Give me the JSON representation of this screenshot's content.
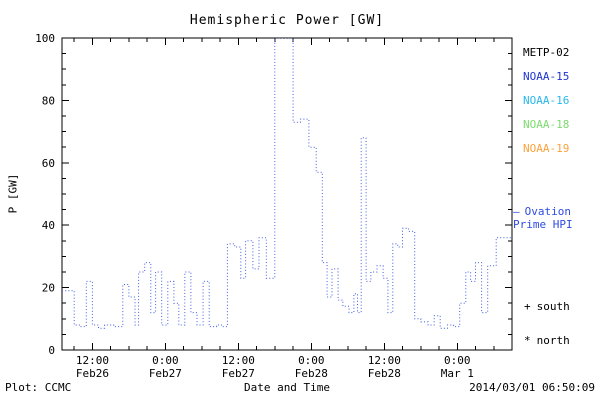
{
  "title": "Hemispheric Power [GW]",
  "footer": {
    "left": "Plot: CCMC",
    "right": "2014/03/01 06:50:09"
  },
  "legend": {
    "satellites": [
      {
        "label": "METP-02",
        "color": "#000000"
      },
      {
        "label": "NOAA-15",
        "color": "#1f35cf"
      },
      {
        "label": "NOAA-16",
        "color": "#29b9e8"
      },
      {
        "label": "NOAA-18",
        "color": "#7bdc6e"
      },
      {
        "label": "NOAA-19",
        "color": "#f9a23c"
      }
    ],
    "series_label": {
      "dash": "—",
      "line1": "Ovation",
      "line2": "Prime HPI",
      "color": "#2f4be0"
    },
    "markers": [
      {
        "symbol": "+",
        "label": "south"
      },
      {
        "symbol": "*",
        "label": "north"
      }
    ]
  },
  "chart_data": {
    "type": "line",
    "step": true,
    "line_style": "dotted",
    "line_color": "#3f5ce0",
    "title": "Hemispheric Power [GW]",
    "xlabel": "Date and Time",
    "ylabel": "P [GW]",
    "ylim": [
      0,
      100
    ],
    "xlim_hours": [
      7,
      81
    ],
    "grid": false,
    "y_ticks": [
      0,
      20,
      40,
      60,
      80,
      100
    ],
    "x_ticks": [
      {
        "hour": 12,
        "line1": "12:00",
        "line2": "Feb26"
      },
      {
        "hour": 24,
        "line1": "0:00",
        "line2": "Feb27"
      },
      {
        "hour": 36,
        "line1": "12:00",
        "line2": "Feb27"
      },
      {
        "hour": 48,
        "line1": "0:00",
        "line2": "Feb28"
      },
      {
        "hour": 60,
        "line1": "12:00",
        "line2": "Feb28"
      },
      {
        "hour": 72,
        "line1": "0:00",
        "line2": "Mar 1"
      }
    ],
    "points": [
      [
        7,
        19
      ],
      [
        9,
        8
      ],
      [
        10,
        7.5
      ],
      [
        11,
        22
      ],
      [
        12,
        8
      ],
      [
        13,
        7
      ],
      [
        14,
        8
      ],
      [
        15.5,
        7.5
      ],
      [
        17,
        21
      ],
      [
        18,
        17
      ],
      [
        19,
        8
      ],
      [
        19.6,
        25
      ],
      [
        20.6,
        28
      ],
      [
        21.6,
        12
      ],
      [
        22.4,
        25
      ],
      [
        23.4,
        8
      ],
      [
        24.4,
        22
      ],
      [
        25.4,
        15
      ],
      [
        26.2,
        8
      ],
      [
        27.2,
        25
      ],
      [
        28.2,
        12
      ],
      [
        29.2,
        8
      ],
      [
        30.2,
        22
      ],
      [
        31.2,
        7.5
      ],
      [
        32.4,
        8
      ],
      [
        33.4,
        7.5
      ],
      [
        34.2,
        34
      ],
      [
        35.4,
        33
      ],
      [
        36.4,
        23
      ],
      [
        37.2,
        35
      ],
      [
        38.4,
        26
      ],
      [
        39.4,
        36
      ],
      [
        40.6,
        23
      ],
      [
        42,
        100
      ],
      [
        45,
        73
      ],
      [
        46.2,
        74
      ],
      [
        47.6,
        65
      ],
      [
        48.8,
        57
      ],
      [
        49.8,
        28
      ],
      [
        50.6,
        17
      ],
      [
        51.4,
        26
      ],
      [
        52.4,
        16
      ],
      [
        53.2,
        14
      ],
      [
        54.2,
        12
      ],
      [
        55,
        18
      ],
      [
        55.6,
        12
      ],
      [
        56.2,
        68
      ],
      [
        57,
        22
      ],
      [
        57.8,
        25
      ],
      [
        58.8,
        27
      ],
      [
        59.8,
        23
      ],
      [
        60.6,
        12
      ],
      [
        61.4,
        34
      ],
      [
        62.2,
        33
      ],
      [
        63,
        39
      ],
      [
        64,
        38
      ],
      [
        65,
        10
      ],
      [
        66,
        9
      ],
      [
        67.2,
        8
      ],
      [
        68.2,
        11
      ],
      [
        69.2,
        7
      ],
      [
        70.4,
        8
      ],
      [
        71.4,
        7.5
      ],
      [
        72.4,
        15
      ],
      [
        73.4,
        25
      ],
      [
        74.2,
        22
      ],
      [
        75,
        28
      ],
      [
        76,
        12
      ],
      [
        77,
        27
      ],
      [
        78.4,
        36
      ]
    ]
  }
}
